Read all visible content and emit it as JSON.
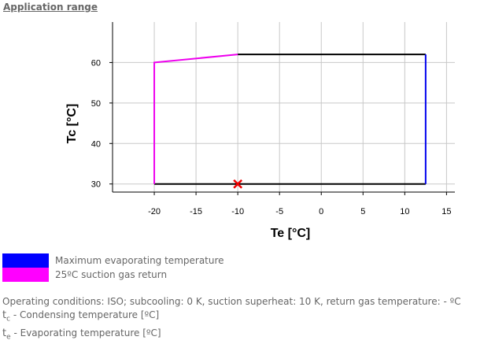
{
  "section": {
    "title": "Application range"
  },
  "chart_data": {
    "type": "line",
    "xlabel": "Te [°C]",
    "ylabel": "Tc [°C]",
    "xlim": [
      -25,
      16
    ],
    "ylim": [
      28,
      70
    ],
    "xticks": [
      -20,
      -15,
      -10,
      -5,
      0,
      5,
      10,
      15
    ],
    "yticks": [
      30,
      40,
      50,
      60
    ],
    "grid": true,
    "series": [
      {
        "color": "#000000",
        "x": [
          -20,
          12.5
        ],
        "y": [
          30,
          30
        ]
      },
      {
        "color": "#000000",
        "x": [
          -10,
          12.5
        ],
        "y": [
          62,
          62
        ]
      },
      {
        "name": "Maximum evaporating temperature",
        "color": "#0000ee",
        "x": [
          12.5,
          12.5
        ],
        "y": [
          30,
          62
        ]
      },
      {
        "name": "25ºC suction gas return",
        "color": "#ee00ee",
        "x": [
          -20,
          -20,
          -10
        ],
        "y": [
          30,
          60,
          62
        ]
      }
    ],
    "marker": {
      "x": -10,
      "y": 30,
      "color": "#ee0000",
      "shape": "cross-icon"
    }
  },
  "legend": [
    {
      "label": "Maximum evaporating temperature",
      "color": "#0000ff"
    },
    {
      "label": "25ºC suction gas return",
      "color": "#ff00ff"
    }
  ],
  "notes": {
    "operating_conditions": "Operating conditions: ISO; subcooling: 0 K, suction superheat: 10 K, return gas temperature: - ºC",
    "tc_symbol": "t",
    "tc_sub": "c",
    "tc_text": " - Condensing temperature [ºC]",
    "te_symbol": "t",
    "te_sub": "e",
    "te_text": " - Evaporating temperature [ºC]"
  }
}
